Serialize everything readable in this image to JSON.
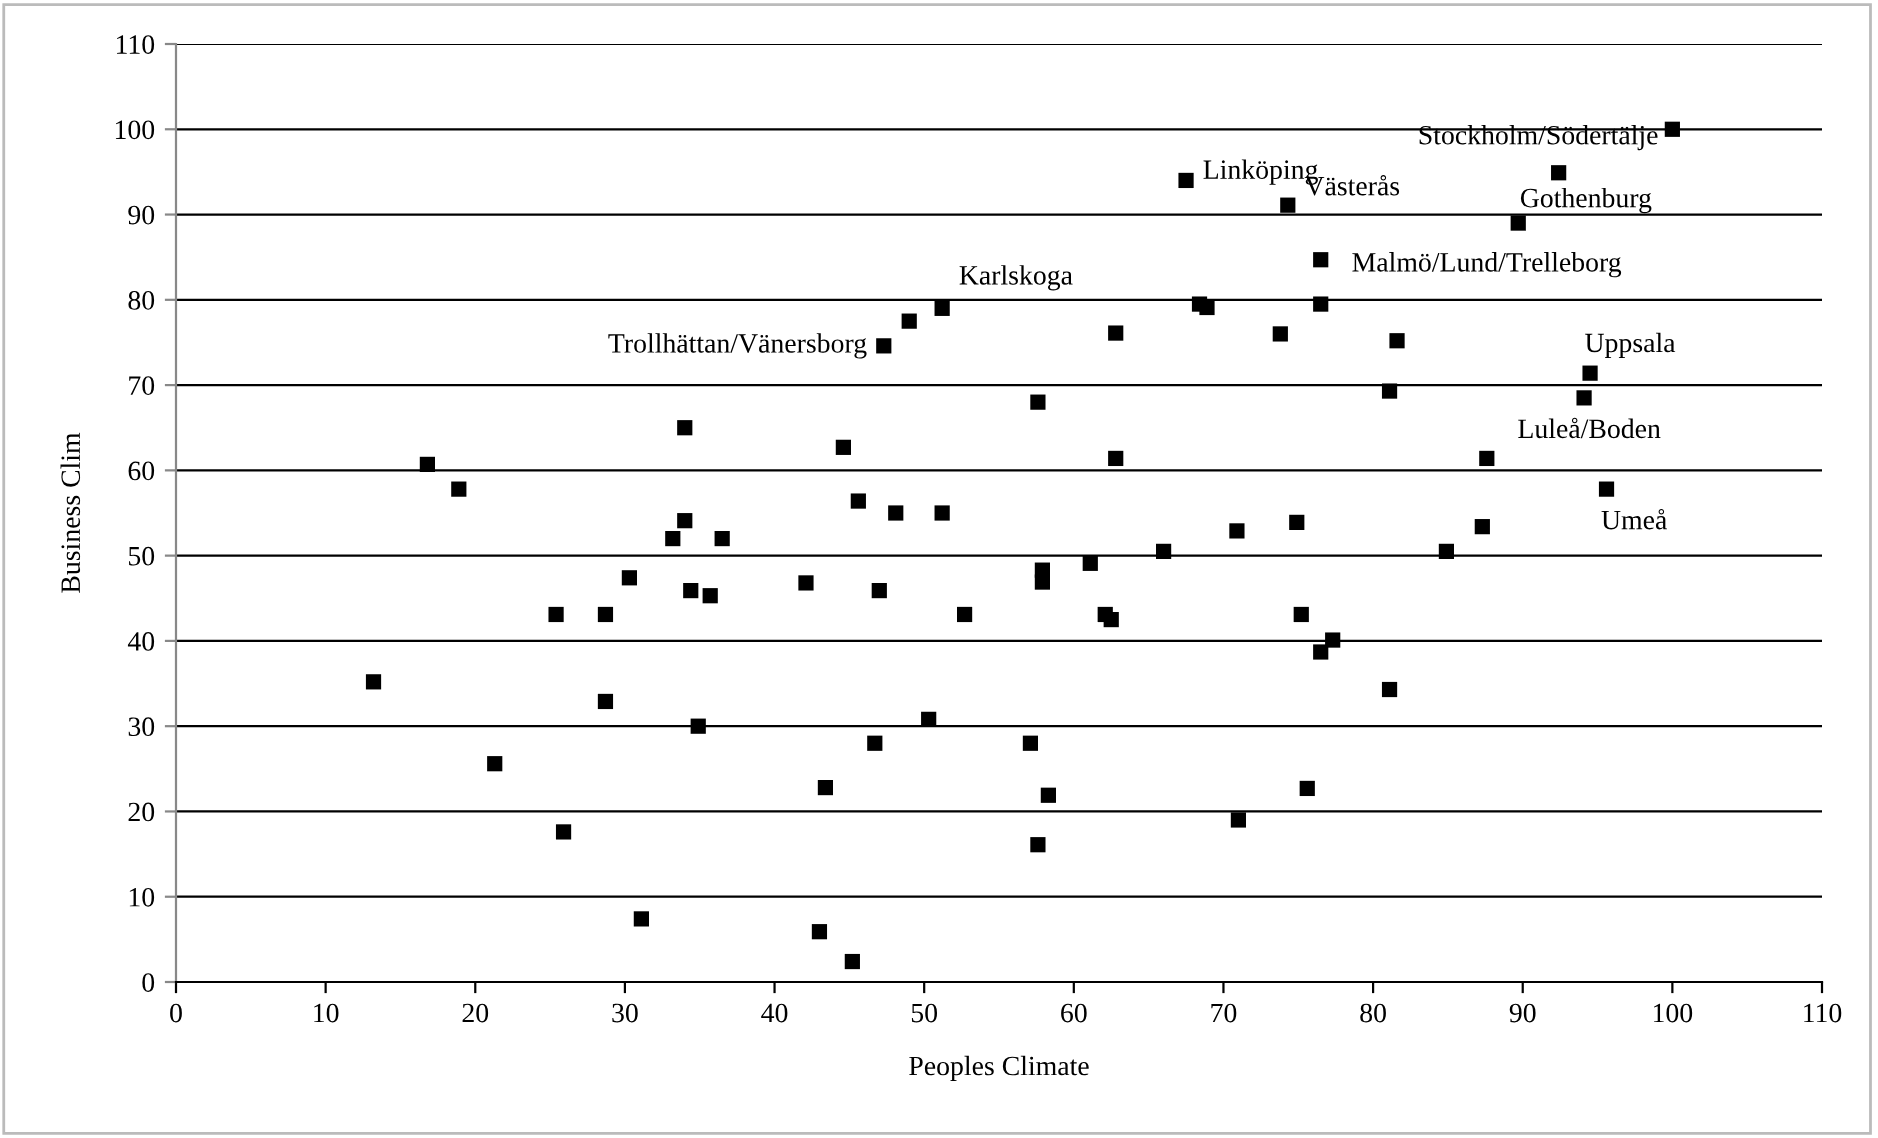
{
  "chart_data": {
    "type": "scatter",
    "xlabel": "Peoples Climate",
    "ylabel": "Business Clim",
    "x": [
      100,
      92.4,
      67.5,
      74.3,
      89.7,
      76.5,
      68.4,
      68.9,
      76.5,
      62.8,
      73.8,
      81.6,
      94.5,
      94.1,
      81.1,
      57.6,
      62.8,
      87.6,
      95.6,
      70.9,
      74.9,
      87.3,
      51.2,
      49,
      47.3,
      34,
      44.6,
      16.8,
      18.9,
      34,
      45.6,
      48.1,
      51.2,
      33.2,
      36.5,
      30.3,
      34.4,
      35.7,
      42.1,
      47,
      25.4,
      28.7,
      52.7,
      13.2,
      28.7,
      34.9,
      50.3,
      21.3,
      46.7,
      43.4,
      25.9,
      31.1,
      43,
      45.2,
      84.9,
      66,
      61.1,
      57.9,
      57.9,
      62.1,
      62.5,
      75.2,
      77.3,
      76.5,
      81.1,
      57.1,
      58.3,
      57.6,
      71,
      75.6
    ],
    "values": [
      100,
      94.9,
      94,
      91.1,
      89,
      84.7,
      79.5,
      79.1,
      79.5,
      76.1,
      76,
      75.2,
      71.4,
      68.5,
      69.3,
      68,
      61.4,
      61.4,
      57.8,
      52.9,
      53.9,
      53.4,
      79,
      77.5,
      74.6,
      65,
      62.7,
      60.7,
      57.8,
      54.1,
      56.4,
      55,
      55,
      52,
      52,
      47.4,
      45.9,
      45.3,
      46.8,
      45.9,
      43.1,
      43.1,
      43.1,
      35.2,
      32.9,
      30,
      30.8,
      25.6,
      28,
      22.8,
      17.6,
      7.4,
      5.9,
      2.4,
      50.5,
      50.5,
      49.1,
      48.3,
      46.9,
      43.1,
      42.5,
      43.1,
      40.1,
      38.7,
      34.3,
      28,
      21.9,
      16.1,
      19,
      22.7
    ],
    "color": "#000000",
    "marker": "square",
    "xlim": [
      0,
      110
    ],
    "xticks": [
      0,
      10,
      20,
      30,
      40,
      50,
      60,
      70,
      80,
      90,
      100,
      110
    ],
    "ylim": [
      0,
      110
    ],
    "yticks": [
      0,
      10,
      20,
      30,
      40,
      50,
      60,
      70,
      80,
      90,
      100,
      110
    ],
    "grid": "y",
    "legend": false,
    "annotations": [
      {
        "text": "Stockholm/Södertälje",
        "x": 100,
        "y": 100
      },
      {
        "text": "Linköping",
        "x": 67.5,
        "y": 94
      },
      {
        "text": "Västerås",
        "x": 74.3,
        "y": 91.1
      },
      {
        "text": "Gothenburg",
        "x": 92.4,
        "y": 94.9
      },
      {
        "text": "Malmö/Lund/Trelleborg",
        "x": 89.7,
        "y": 89
      },
      {
        "text": "Karlskoga",
        "x": 51.2,
        "y": 79
      },
      {
        "text": "Trollhättan/Vänersborg",
        "x": 47.3,
        "y": 74.6
      },
      {
        "text": "Uppsala",
        "x": 94.5,
        "y": 71.4
      },
      {
        "text": "Luleå/Boden",
        "x": 94.1,
        "y": 68.5
      },
      {
        "text": "Umeå",
        "x": 95.6,
        "y": 57.8
      }
    ]
  }
}
